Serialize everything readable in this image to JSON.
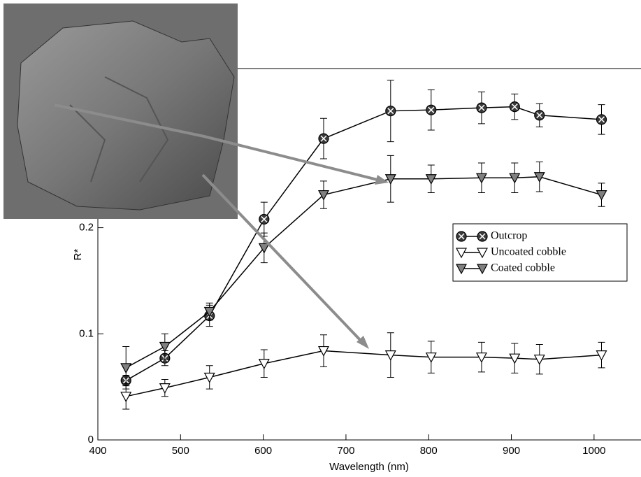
{
  "chart_data": {
    "type": "line",
    "x_label": "Wavelength (nm)",
    "y_label": "R*",
    "x": [
      434,
      481,
      535,
      601,
      673,
      754,
      803,
      864,
      904,
      934,
      1009
    ],
    "series": [
      {
        "name": "Outcrop",
        "color": "#3a3a3a",
        "marker": "circle",
        "values": [
          0.056,
          0.077,
          0.117,
          0.208,
          0.284,
          0.31,
          0.311,
          0.313,
          0.314,
          0.306,
          0.302
        ],
        "errors": [
          0.005,
          0.007,
          0.01,
          0.016,
          0.019,
          0.029,
          0.019,
          0.015,
          0.012,
          0.011,
          0.014
        ]
      },
      {
        "name": "Uncoated cobble",
        "color": "#ffffff",
        "marker": "triangle",
        "values": [
          0.041,
          0.049,
          0.059,
          0.072,
          0.084,
          0.08,
          0.078,
          0.078,
          0.077,
          0.076,
          0.08
        ],
        "errors": [
          0.012,
          0.008,
          0.011,
          0.013,
          0.015,
          0.021,
          0.015,
          0.014,
          0.014,
          0.014,
          0.012
        ]
      },
      {
        "name": "Coated cobble",
        "color": "#808080",
        "marker": "triangle",
        "values": [
          0.068,
          0.088,
          0.121,
          0.181,
          0.231,
          0.246,
          0.246,
          0.247,
          0.247,
          0.248,
          0.231
        ],
        "errors": [
          0.02,
          0.012,
          0.008,
          0.014,
          0.013,
          0.022,
          0.013,
          0.014,
          0.014,
          0.014,
          0.011
        ]
      }
    ],
    "xlim": [
      400,
      1050
    ],
    "ylim": [
      0,
      0.35
    ],
    "xticks": [
      400,
      500,
      600,
      700,
      800,
      900,
      1000
    ],
    "yticks": [
      0,
      0.1,
      0.2
    ]
  }
}
